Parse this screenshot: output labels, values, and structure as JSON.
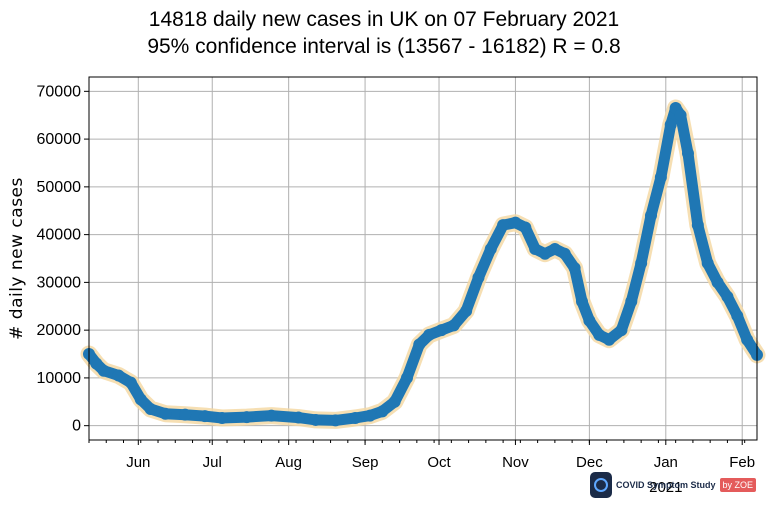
{
  "titles": {
    "line1": "14818 daily new cases in UK on 07 February 2021",
    "line2": "95% confidence interval is (13567 - 16182) R = 0.8"
  },
  "logo": {
    "text": "COVID Symptom Study",
    "badge": "by ZOE"
  },
  "chart_data": {
    "type": "line",
    "ylabel": "# daily new cases",
    "xlabel": "",
    "year_label": "2021",
    "ylim": [
      -3000,
      73000
    ],
    "yticks": [
      0,
      10000,
      20000,
      30000,
      40000,
      50000,
      60000,
      70000
    ],
    "xlim": [
      "2020-05-12",
      "2021-02-07"
    ],
    "xticks": [
      {
        "date": "2020-06-01",
        "label": "Jun"
      },
      {
        "date": "2020-07-01",
        "label": "Jul"
      },
      {
        "date": "2020-08-01",
        "label": "Aug"
      },
      {
        "date": "2020-09-01",
        "label": "Sep"
      },
      {
        "date": "2020-10-01",
        "label": "Oct"
      },
      {
        "date": "2020-11-01",
        "label": "Nov"
      },
      {
        "date": "2020-12-01",
        "label": "Dec"
      },
      {
        "date": "2021-01-01",
        "label": "Jan"
      },
      {
        "date": "2021-02-01",
        "label": "Feb"
      }
    ],
    "grid": true,
    "colors": {
      "line": "#1f77b4",
      "ci_band": "#f5d9a6"
    },
    "series": [
      {
        "points": [
          [
            "2020-05-12",
            15000
          ],
          [
            "2020-05-15",
            13000
          ],
          [
            "2020-05-18",
            11500
          ],
          [
            "2020-05-24",
            10500
          ],
          [
            "2020-05-29",
            9000
          ],
          [
            "2020-06-02",
            5500
          ],
          [
            "2020-06-06",
            3500
          ],
          [
            "2020-06-12",
            2500
          ],
          [
            "2020-06-20",
            2300
          ],
          [
            "2020-06-28",
            2000
          ],
          [
            "2020-07-05",
            1600
          ],
          [
            "2020-07-15",
            1800
          ],
          [
            "2020-07-25",
            2100
          ],
          [
            "2020-08-05",
            1700
          ],
          [
            "2020-08-12",
            1200
          ],
          [
            "2020-08-20",
            1100
          ],
          [
            "2020-08-28",
            1600
          ],
          [
            "2020-09-03",
            2100
          ],
          [
            "2020-09-08",
            3000
          ],
          [
            "2020-09-13",
            5000
          ],
          [
            "2020-09-18",
            10000
          ],
          [
            "2020-09-23",
            17000
          ],
          [
            "2020-09-27",
            19000
          ],
          [
            "2020-10-02",
            20000
          ],
          [
            "2020-10-07",
            21000
          ],
          [
            "2020-10-12",
            24000
          ],
          [
            "2020-10-17",
            31000
          ],
          [
            "2020-10-22",
            37000
          ],
          [
            "2020-10-27",
            42000
          ],
          [
            "2020-11-01",
            42500
          ],
          [
            "2020-11-05",
            41500
          ],
          [
            "2020-11-09",
            37000
          ],
          [
            "2020-11-13",
            36000
          ],
          [
            "2020-11-17",
            37000
          ],
          [
            "2020-11-21",
            36000
          ],
          [
            "2020-11-25",
            33000
          ],
          [
            "2020-11-28",
            26000
          ],
          [
            "2020-12-01",
            22000
          ],
          [
            "2020-12-05",
            19000
          ],
          [
            "2020-12-09",
            18000
          ],
          [
            "2020-12-14",
            20000
          ],
          [
            "2020-12-18",
            26000
          ],
          [
            "2020-12-22",
            34000
          ],
          [
            "2020-12-26",
            44000
          ],
          [
            "2020-12-30",
            52000
          ],
          [
            "2021-01-03",
            63000
          ],
          [
            "2021-01-05",
            66500
          ],
          [
            "2021-01-07",
            65000
          ],
          [
            "2021-01-10",
            57000
          ],
          [
            "2021-01-14",
            42000
          ],
          [
            "2021-01-18",
            34000
          ],
          [
            "2021-01-22",
            30000
          ],
          [
            "2021-01-26",
            27000
          ],
          [
            "2021-01-30",
            23000
          ],
          [
            "2021-02-03",
            18000
          ],
          [
            "2021-02-07",
            14818
          ]
        ]
      }
    ]
  }
}
